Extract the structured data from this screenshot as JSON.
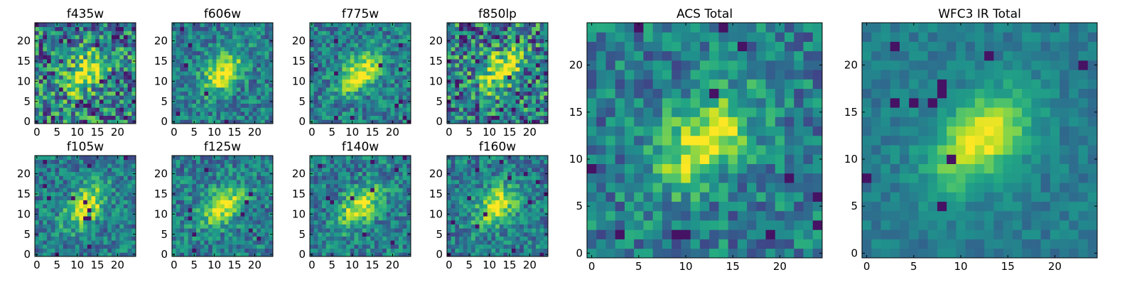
{
  "chart_data": [
    {
      "type": "heatmap",
      "title": "f435w",
      "xticks": [
        "0",
        "5",
        "10",
        "15",
        "20"
      ],
      "yticks": [
        "0",
        "5",
        "10",
        "15",
        "20"
      ],
      "grid_size": 25,
      "xlim": [
        -0.5,
        24.5
      ],
      "ylim": [
        -0.5,
        24.5
      ],
      "colormap": "viridis",
      "peak": {
        "x": 12,
        "y": 12
      },
      "noise": "high"
    },
    {
      "type": "heatmap",
      "title": "f606w",
      "xticks": [
        "0",
        "5",
        "10",
        "15",
        "20"
      ],
      "yticks": [
        "0",
        "5",
        "10",
        "15",
        "20"
      ],
      "grid_size": 25,
      "xlim": [
        -0.5,
        24.5
      ],
      "ylim": [
        -0.5,
        24.5
      ],
      "colormap": "viridis",
      "peak": {
        "x": 12,
        "y": 12
      },
      "noise": "medium"
    },
    {
      "type": "heatmap",
      "title": "f775w",
      "xticks": [
        "0",
        "5",
        "10",
        "15",
        "20"
      ],
      "yticks": [
        "0",
        "5",
        "10",
        "15",
        "20"
      ],
      "grid_size": 25,
      "xlim": [
        -0.5,
        24.5
      ],
      "ylim": [
        -0.5,
        24.5
      ],
      "colormap": "viridis",
      "peak": {
        "x": 12,
        "y": 12
      },
      "noise": "medium"
    },
    {
      "type": "heatmap",
      "title": "f850lp",
      "xticks": [
        "0",
        "5",
        "10",
        "15",
        "20"
      ],
      "yticks": [
        "0",
        "5",
        "10",
        "15",
        "20"
      ],
      "grid_size": 25,
      "xlim": [
        -0.5,
        24.5
      ],
      "ylim": [
        -0.5,
        24.5
      ],
      "colormap": "viridis",
      "peak": {
        "x": 13,
        "y": 13
      },
      "noise": "high"
    },
    {
      "type": "heatmap",
      "title": "ACS Total",
      "xticks": [
        "0",
        "5",
        "10",
        "15",
        "20"
      ],
      "yticks": [
        "0",
        "5",
        "10",
        "15",
        "20"
      ],
      "grid_size": 25,
      "xlim": [
        -0.5,
        24.5
      ],
      "ylim": [
        -0.5,
        24.5
      ],
      "colormap": "viridis",
      "peak": {
        "x": 12,
        "y": 12
      },
      "noise": "medium"
    },
    {
      "type": "heatmap",
      "title": "WFC3 IR Total",
      "xticks": [
        "0",
        "5",
        "10",
        "15",
        "20"
      ],
      "yticks": [
        "0",
        "5",
        "10",
        "15",
        "20"
      ],
      "grid_size": 25,
      "xlim": [
        -0.5,
        24.5
      ],
      "ylim": [
        -0.5,
        24.5
      ],
      "colormap": "viridis",
      "peak": {
        "x": 12,
        "y": 12
      },
      "noise": "low"
    },
    {
      "type": "heatmap",
      "title": "f105w",
      "xticks": [
        "0",
        "5",
        "10",
        "15",
        "20"
      ],
      "yticks": [
        "0",
        "5",
        "10",
        "15",
        "20"
      ],
      "grid_size": 25,
      "xlim": [
        -0.5,
        24.5
      ],
      "ylim": [
        -0.5,
        24.5
      ],
      "colormap": "viridis",
      "peak": {
        "x": 12,
        "y": 12
      },
      "noise": "medium"
    },
    {
      "type": "heatmap",
      "title": "f125w",
      "xticks": [
        "0",
        "5",
        "10",
        "15",
        "20"
      ],
      "yticks": [
        "0",
        "5",
        "10",
        "15",
        "20"
      ],
      "grid_size": 25,
      "xlim": [
        -0.5,
        24.5
      ],
      "ylim": [
        -0.5,
        24.5
      ],
      "colormap": "viridis",
      "peak": {
        "x": 12,
        "y": 12
      },
      "noise": "medium"
    },
    {
      "type": "heatmap",
      "title": "f140w",
      "xticks": [
        "0",
        "5",
        "10",
        "15",
        "20"
      ],
      "yticks": [
        "0",
        "5",
        "10",
        "15",
        "20"
      ],
      "grid_size": 25,
      "xlim": [
        -0.5,
        24.5
      ],
      "ylim": [
        -0.5,
        24.5
      ],
      "colormap": "viridis",
      "peak": {
        "x": 12,
        "y": 12
      },
      "noise": "medium"
    },
    {
      "type": "heatmap",
      "title": "f160w",
      "xticks": [
        "0",
        "5",
        "10",
        "15",
        "20"
      ],
      "yticks": [
        "0",
        "5",
        "10",
        "15",
        "20"
      ],
      "grid_size": 25,
      "xlim": [
        -0.5,
        24.5
      ],
      "ylim": [
        -0.5,
        24.5
      ],
      "colormap": "viridis",
      "peak": {
        "x": 12,
        "y": 12
      },
      "noise": "medium"
    }
  ]
}
